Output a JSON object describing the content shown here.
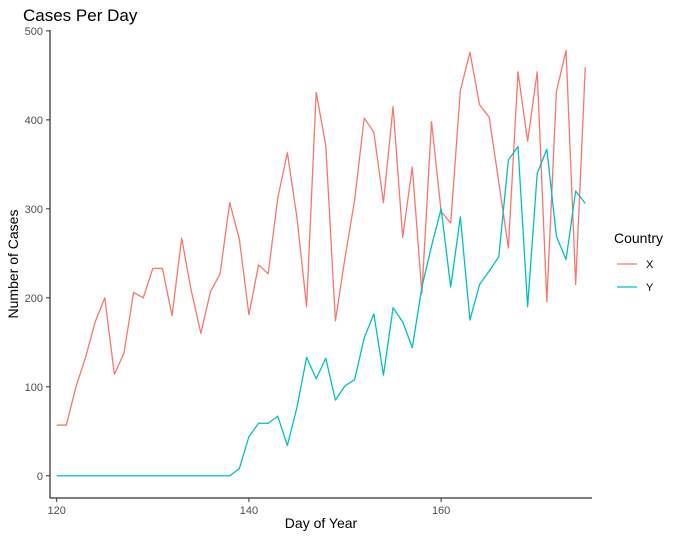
{
  "chart_data": {
    "type": "line",
    "title": "Cases Per Day",
    "xlabel": "Day of Year",
    "ylabel": "Number of Cases",
    "xlim": [
      119.3,
      175.7
    ],
    "ylim": [
      -25,
      501
    ],
    "xticks": [
      120,
      140,
      160
    ],
    "yticks": [
      0,
      100,
      200,
      300,
      400,
      500
    ],
    "grid": false,
    "legend": {
      "title": "Country",
      "position": "right"
    },
    "series": [
      {
        "name": "X",
        "color": "#F8766D",
        "x": [
          120,
          121,
          122,
          123,
          124,
          125,
          126,
          127,
          128,
          129,
          130,
          131,
          132,
          133,
          134,
          135,
          136,
          137,
          138,
          139,
          140,
          141,
          142,
          143,
          144,
          145,
          146,
          147,
          148,
          149,
          150,
          151,
          152,
          153,
          154,
          155,
          156,
          157,
          158,
          159,
          160,
          161,
          162,
          163,
          164,
          165,
          166,
          167,
          168,
          169,
          170,
          171,
          172,
          173,
          174,
          175
        ],
        "values": [
          57,
          57,
          100,
          133,
          173,
          200,
          114,
          138,
          206,
          200,
          233,
          233,
          180,
          267,
          208,
          160,
          207,
          227,
          307,
          266,
          181,
          237,
          227,
          312,
          363,
          290,
          190,
          431,
          371,
          174,
          245,
          310,
          402,
          386,
          307,
          415,
          268,
          347,
          205,
          398,
          297,
          284,
          433,
          476,
          417,
          403,
          330,
          256,
          454,
          376,
          454,
          196,
          432,
          478,
          215,
          459
        ]
      },
      {
        "name": "Y",
        "color": "#00BFC4",
        "x": [
          120,
          121,
          122,
          123,
          124,
          125,
          126,
          127,
          128,
          129,
          130,
          131,
          132,
          133,
          134,
          135,
          136,
          137,
          138,
          139,
          140,
          141,
          142,
          143,
          144,
          145,
          146,
          147,
          148,
          149,
          150,
          151,
          152,
          153,
          154,
          155,
          156,
          157,
          158,
          159,
          160,
          161,
          162,
          163,
          164,
          165,
          166,
          167,
          168,
          169,
          170,
          171,
          172,
          173,
          174,
          175
        ],
        "values": [
          0,
          0,
          0,
          0,
          0,
          0,
          0,
          0,
          0,
          0,
          0,
          0,
          0,
          0,
          0,
          0,
          0,
          0,
          0,
          8,
          44,
          59,
          59,
          67,
          34,
          77,
          133,
          109,
          132,
          85,
          101,
          108,
          155,
          182,
          113,
          189,
          173,
          144,
          212,
          258,
          300,
          212,
          291,
          175,
          215,
          230,
          246,
          355,
          370,
          190,
          340,
          367,
          269,
          243,
          320,
          306
        ]
      }
    ]
  }
}
